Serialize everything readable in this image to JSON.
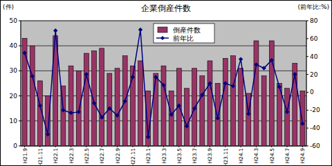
{
  "chart_data": {
    "type": "bar",
    "title": "企業倒産件数",
    "ylabel": "(件)",
    "y2label": "(前年比:%)",
    "categories": [
      "H21.9",
      null,
      "H21.11",
      null,
      "H22.1",
      null,
      "H22.3",
      null,
      "H22.5",
      null,
      "H22.7",
      null,
      "H22.9",
      null,
      "H22.11",
      null,
      "H23.1",
      null,
      "H23.3",
      null,
      "H23.5",
      null,
      "H23.7",
      null,
      "H23.9",
      null,
      "H23.11",
      null,
      "H24.1",
      null,
      "H24.3",
      null,
      "H24.5",
      null,
      "H24.7",
      null,
      "H24.9"
    ],
    "series": [
      {
        "name": "倒産件数",
        "type": "bar",
        "color": "#993366",
        "values": [
          43,
          40,
          26,
          20,
          44,
          24,
          32,
          30,
          37,
          38,
          39,
          29,
          31,
          36,
          32,
          34,
          22,
          29,
          32,
          22,
          31,
          23,
          31,
          28,
          34,
          25,
          35,
          36,
          31,
          21,
          42,
          28,
          42,
          25,
          23,
          33,
          22
        ]
      },
      {
        "name": "前年比",
        "type": "line",
        "axis": "y2",
        "color": "#000080",
        "marker": "diamond",
        "line_style": "solid",
        "values": [
          44,
          18,
          -15,
          -47,
          69,
          -20,
          -23,
          -22,
          20,
          -12,
          -28,
          -18,
          -26,
          -10,
          17,
          70,
          -50,
          17,
          8,
          -25,
          -15,
          -38,
          -18,
          -3,
          10,
          -29,
          10,
          7,
          37,
          -24,
          31,
          27,
          36,
          6,
          -22,
          20,
          -35
        ]
      }
    ],
    "ylim": [
      0,
      50
    ],
    "yticks": [
      0,
      10,
      20,
      30,
      40,
      50
    ],
    "y2lim": [
      -60,
      80
    ],
    "y2ticks": [
      -60,
      -40,
      -20,
      0,
      20,
      40,
      60,
      80
    ],
    "grid": true,
    "legend": "top"
  }
}
